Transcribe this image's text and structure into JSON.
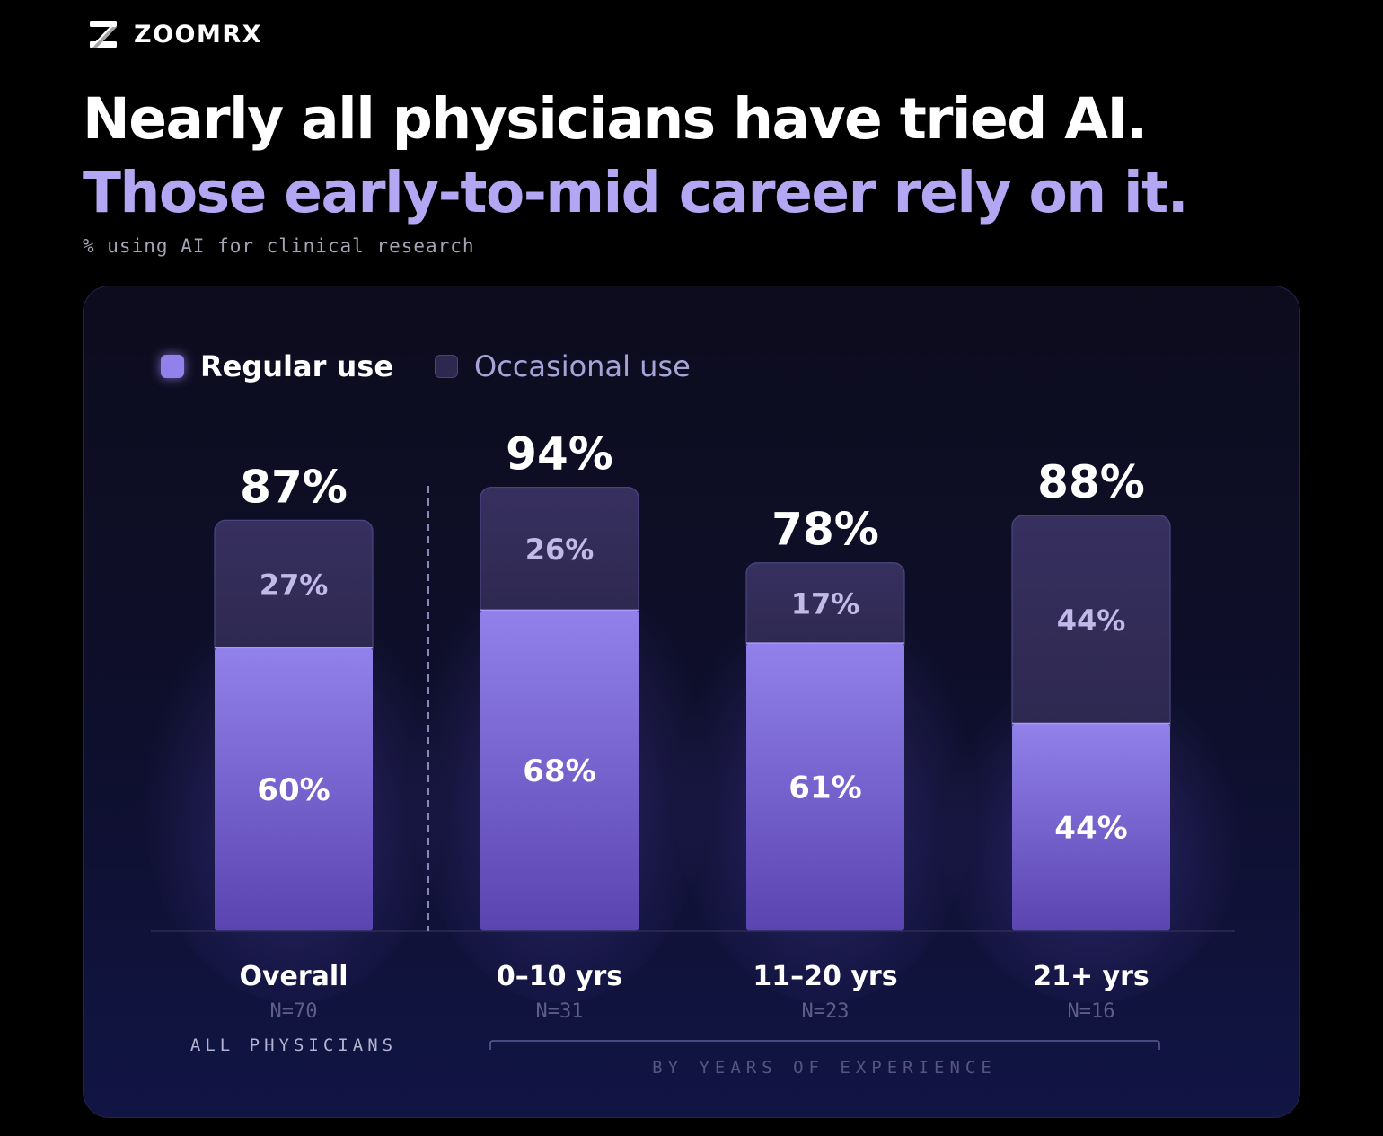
{
  "brand": {
    "name": "ZOOMRX",
    "logo_icon": "zoomrx-logo-icon"
  },
  "title_line1": "Nearly all physicians have tried AI.",
  "title_line2": "Those early-to-mid career rely on it.",
  "subtitle": "% using AI for clinical research",
  "legend": {
    "regular": "Regular use",
    "occasional": "Occasional use"
  },
  "colors": {
    "regular": "#9281ea",
    "regular_dark": "#5a44b0",
    "occasional": "#2d2850",
    "title_accent": "#b3a6f3"
  },
  "chart_data": {
    "type": "bar",
    "stacked": true,
    "categories": [
      "Overall",
      "0–10 yrs",
      "11–20 yrs",
      "21+ yrs"
    ],
    "sample_sizes": [
      "N=70",
      "N=31",
      "N=23",
      "N=16"
    ],
    "series": [
      {
        "name": "Regular use",
        "values": [
          60,
          68,
          61,
          44
        ]
      },
      {
        "name": "Occasional use",
        "values": [
          27,
          26,
          17,
          44
        ]
      }
    ],
    "totals": [
      87,
      94,
      78,
      88
    ],
    "group_labels": [
      "ALL PHYSICIANS",
      "BY YEARS OF EXPERIENCE"
    ],
    "ylim": [
      0,
      100
    ]
  }
}
